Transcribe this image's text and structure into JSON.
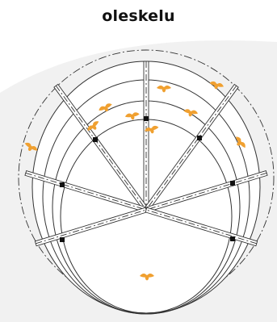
{
  "title": "oleskelu",
  "colors": {
    "background": "#ffffff",
    "backdrop_shape": "#f1f1f1",
    "line": "#333333",
    "marker": "#f0a030",
    "joint": "#111111"
  },
  "icons": {
    "marker": "orange-bird-icon"
  }
}
